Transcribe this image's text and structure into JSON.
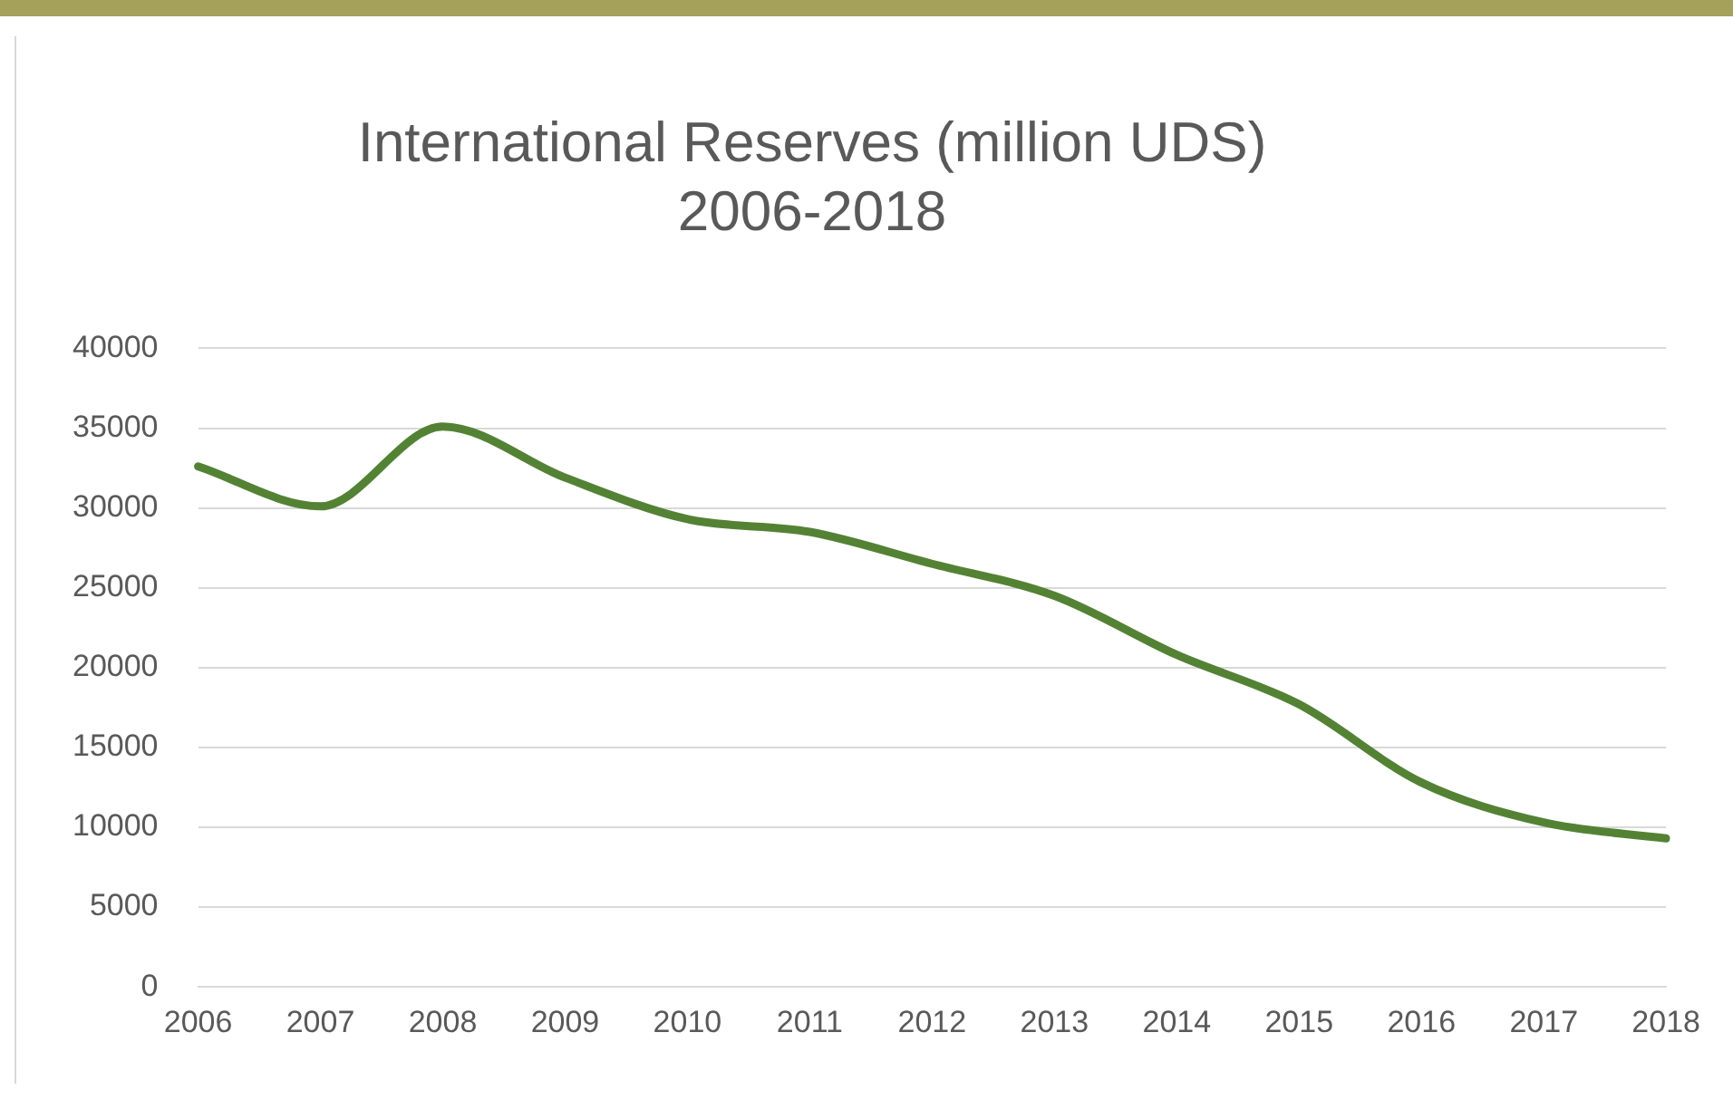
{
  "chart_data": {
    "type": "line",
    "title": "International Reserves (million UDS) 2006-2018",
    "categories": [
      "2006",
      "2007",
      "2008",
      "2009",
      "2010",
      "2011",
      "2012",
      "2013",
      "2014",
      "2015",
      "2016",
      "2017",
      "2018"
    ],
    "series": [
      {
        "color": "#548235",
        "values": [
          32600,
          30100,
          35100,
          31900,
          29300,
          28500,
          26500,
          24500,
          20800,
          17700,
          12800,
          10300,
          9300
        ]
      }
    ],
    "ylim": [
      0,
      40000
    ],
    "yticks": [
      0,
      5000,
      10000,
      15000,
      20000,
      25000,
      30000,
      35000,
      40000
    ],
    "grid": "y",
    "legend": false,
    "marker": "none",
    "line_style": "solid"
  }
}
